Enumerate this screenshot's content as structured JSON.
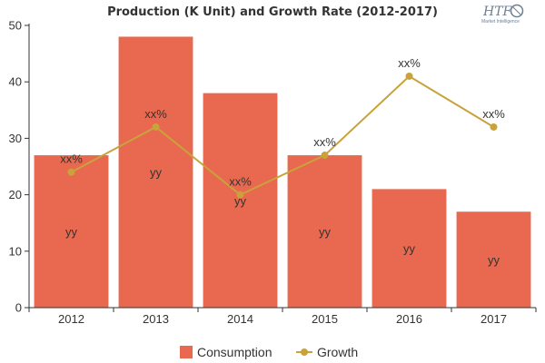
{
  "chart_data": {
    "type": "bar",
    "title": "Production (K Unit) and Growth Rate (2012-2017)",
    "categories": [
      "2012",
      "2013",
      "2014",
      "2015",
      "2016",
      "2017"
    ],
    "ylim": [
      0,
      50
    ],
    "yticks": [
      "0",
      "10",
      "20",
      "30",
      "40",
      "50"
    ],
    "grid": false,
    "legend_position": "bottom",
    "series": [
      {
        "name": "Consumption",
        "type": "bar",
        "color": "#e8694f",
        "values": [
          27,
          48,
          38,
          27,
          21,
          17
        ],
        "data_labels": [
          "yy",
          "yy",
          "yy",
          "yy",
          "yy",
          "yy"
        ]
      },
      {
        "name": "Growth",
        "type": "line",
        "color": "#c8a33c",
        "values": [
          24,
          32,
          20,
          27,
          41,
          32
        ],
        "data_labels": [
          "xx%",
          "xx%",
          "xx%",
          "xx%",
          "xx%",
          "xx%"
        ]
      }
    ]
  },
  "logo": {
    "text": "HTF",
    "subtext": "Market Intelligence"
  }
}
